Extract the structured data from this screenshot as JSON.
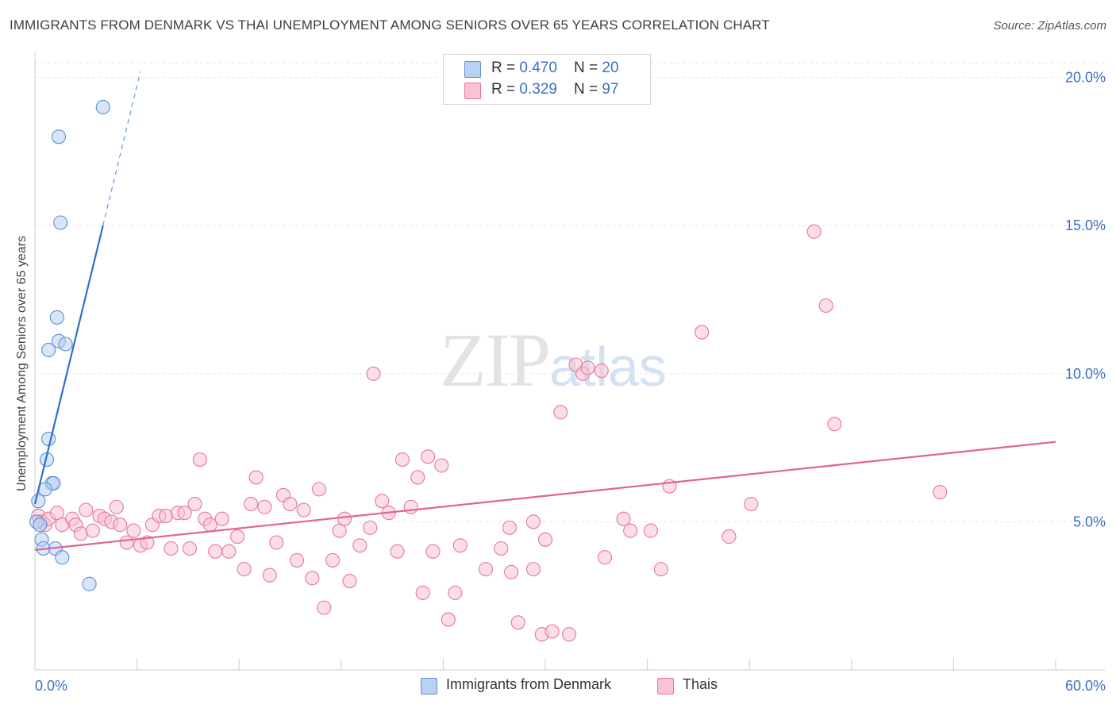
{
  "title": "IMMIGRANTS FROM DENMARK VS THAI UNEMPLOYMENT AMONG SENIORS OVER 65 YEARS CORRELATION CHART",
  "source": "Source: ZipAtlas.com",
  "watermark": {
    "zip": "ZIP",
    "atlas": "atlas"
  },
  "colors": {
    "blue": "#5b8fd6",
    "blue_fill": "#b9d2f3",
    "pink": "#e8769c",
    "pink_fill": "#f8c3d4",
    "tick_label": "#3a70c4"
  },
  "legend_top": [
    {
      "r_label": "R = ",
      "r_value": "0.470",
      "n_label": "N = ",
      "n_value": "20"
    },
    {
      "r_label": "R = ",
      "r_value": "0.329",
      "n_label": "N = ",
      "n_value": "97"
    }
  ],
  "chart_data": {
    "type": "scatter",
    "title": "IMMIGRANTS FROM DENMARK VS THAI UNEMPLOYMENT AMONG SENIORS OVER 65 YEARS CORRELATION CHART",
    "xlabel": "",
    "ylabel": "Unemployment Among Seniors over 65 years",
    "xlim": [
      0,
      60
    ],
    "ylim": [
      0,
      20.5
    ],
    "x_tick_labels": [
      "0.0%",
      "60.0%"
    ],
    "y_ticks": [
      5,
      10,
      15,
      20
    ],
    "y_tick_labels": [
      "5.0%",
      "10.0%",
      "15.0%",
      "20.0%"
    ],
    "legend_position": "bottom",
    "series": [
      {
        "name": "Immigrants from Denmark",
        "color": "blue",
        "trend": {
          "x0": 0.0,
          "y0": 5.6,
          "x1": 4.0,
          "y1": 15.0,
          "dash_x1": 6.2,
          "dash_y1": 20.2
        },
        "points": [
          [
            4.0,
            19.0
          ],
          [
            1.4,
            18.0
          ],
          [
            1.5,
            15.1
          ],
          [
            1.3,
            11.9
          ],
          [
            1.4,
            11.1
          ],
          [
            1.8,
            11.0
          ],
          [
            0.8,
            10.8
          ],
          [
            0.8,
            7.8
          ],
          [
            0.7,
            7.1
          ],
          [
            1.0,
            6.3
          ],
          [
            1.1,
            6.3
          ],
          [
            0.6,
            6.1
          ],
          [
            0.2,
            5.7
          ],
          [
            0.1,
            5.0
          ],
          [
            0.3,
            4.9
          ],
          [
            0.4,
            4.4
          ],
          [
            0.5,
            4.1
          ],
          [
            1.2,
            4.1
          ],
          [
            1.6,
            3.8
          ],
          [
            3.2,
            2.9
          ]
        ]
      },
      {
        "name": "Thais",
        "color": "pink",
        "trend": {
          "x0": 0.0,
          "y0": 4.05,
          "x1": 60.0,
          "y1": 7.7
        },
        "points": [
          [
            0.2,
            5.2
          ],
          [
            0.4,
            5.0
          ],
          [
            0.6,
            4.9
          ],
          [
            0.8,
            5.1
          ],
          [
            1.3,
            5.3
          ],
          [
            1.6,
            4.9
          ],
          [
            2.2,
            5.1
          ],
          [
            2.4,
            4.9
          ],
          [
            2.7,
            4.6
          ],
          [
            3.0,
            5.4
          ],
          [
            3.4,
            4.7
          ],
          [
            3.8,
            5.2
          ],
          [
            4.1,
            5.1
          ],
          [
            4.5,
            5.0
          ],
          [
            4.8,
            5.5
          ],
          [
            5.0,
            4.9
          ],
          [
            5.4,
            4.3
          ],
          [
            5.8,
            4.7
          ],
          [
            6.2,
            4.2
          ],
          [
            6.6,
            4.3
          ],
          [
            6.9,
            4.9
          ],
          [
            7.3,
            5.2
          ],
          [
            7.7,
            5.2
          ],
          [
            8.0,
            4.1
          ],
          [
            8.4,
            5.3
          ],
          [
            8.8,
            5.3
          ],
          [
            9.1,
            4.1
          ],
          [
            9.4,
            5.6
          ],
          [
            9.7,
            7.1
          ],
          [
            10.0,
            5.1
          ],
          [
            10.3,
            4.9
          ],
          [
            10.6,
            4.0
          ],
          [
            11.0,
            5.1
          ],
          [
            11.4,
            4.0
          ],
          [
            11.9,
            4.5
          ],
          [
            12.3,
            3.4
          ],
          [
            12.7,
            5.6
          ],
          [
            13.0,
            6.5
          ],
          [
            13.5,
            5.5
          ],
          [
            13.8,
            3.2
          ],
          [
            14.2,
            4.3
          ],
          [
            14.6,
            5.9
          ],
          [
            15.0,
            5.6
          ],
          [
            15.4,
            3.7
          ],
          [
            15.8,
            5.4
          ],
          [
            16.3,
            3.1
          ],
          [
            16.7,
            6.1
          ],
          [
            17.0,
            2.1
          ],
          [
            17.5,
            3.7
          ],
          [
            17.9,
            4.7
          ],
          [
            18.2,
            5.1
          ],
          [
            18.5,
            3.0
          ],
          [
            19.1,
            4.2
          ],
          [
            19.7,
            4.8
          ],
          [
            19.9,
            10.0
          ],
          [
            20.4,
            5.7
          ],
          [
            20.8,
            5.3
          ],
          [
            21.3,
            4.0
          ],
          [
            21.6,
            7.1
          ],
          [
            22.1,
            5.5
          ],
          [
            22.5,
            6.5
          ],
          [
            22.8,
            2.6
          ],
          [
            23.1,
            7.2
          ],
          [
            23.4,
            4.0
          ],
          [
            23.9,
            6.9
          ],
          [
            24.3,
            1.7
          ],
          [
            24.7,
            2.6
          ],
          [
            25.0,
            4.2
          ],
          [
            26.5,
            3.4
          ],
          [
            27.4,
            4.1
          ],
          [
            27.9,
            4.8
          ],
          [
            28.0,
            3.3
          ],
          [
            28.4,
            1.6
          ],
          [
            29.3,
            5.0
          ],
          [
            29.3,
            3.4
          ],
          [
            29.8,
            1.2
          ],
          [
            30.0,
            4.4
          ],
          [
            30.4,
            1.3
          ],
          [
            30.9,
            8.7
          ],
          [
            31.4,
            1.2
          ],
          [
            31.8,
            10.3
          ],
          [
            32.2,
            10.0
          ],
          [
            32.5,
            10.2
          ],
          [
            33.3,
            10.1
          ],
          [
            33.5,
            3.8
          ],
          [
            34.6,
            5.1
          ],
          [
            35.0,
            4.7
          ],
          [
            36.2,
            4.7
          ],
          [
            36.8,
            3.4
          ],
          [
            37.3,
            6.2
          ],
          [
            39.2,
            11.4
          ],
          [
            40.8,
            4.5
          ],
          [
            42.1,
            5.6
          ],
          [
            45.8,
            14.8
          ],
          [
            46.5,
            12.3
          ],
          [
            47.0,
            8.3
          ],
          [
            53.2,
            6.0
          ]
        ]
      }
    ]
  }
}
